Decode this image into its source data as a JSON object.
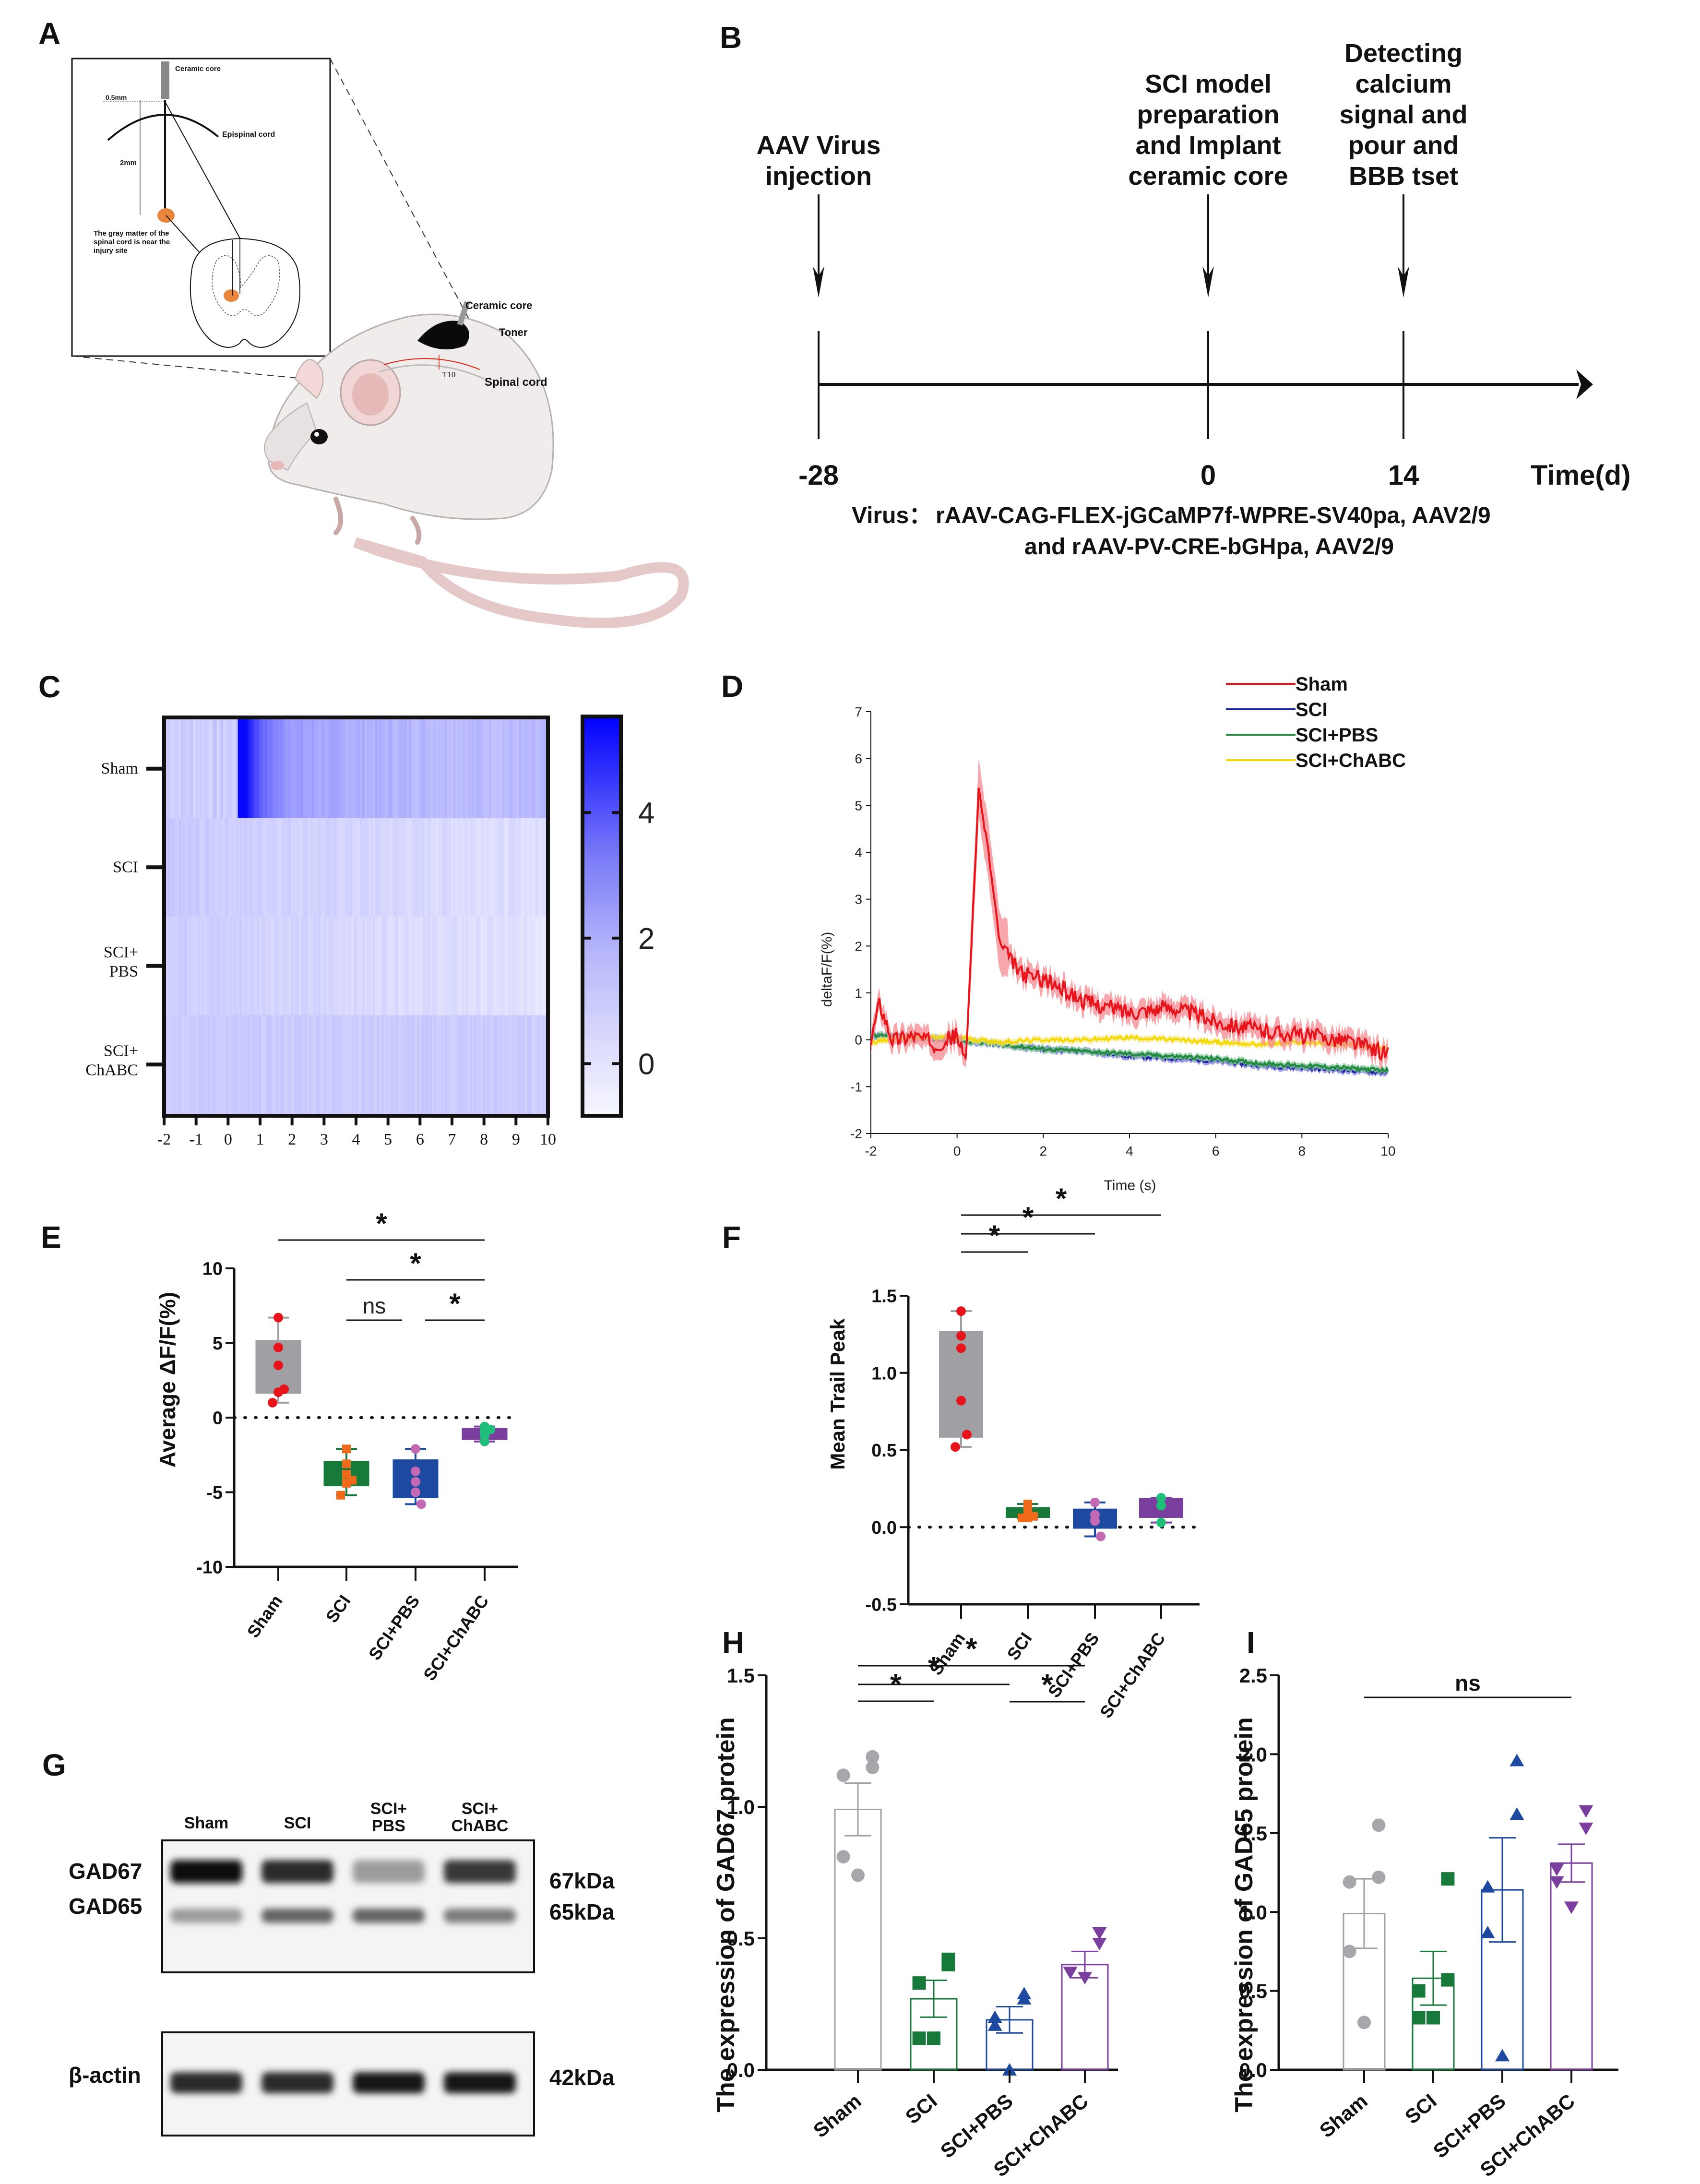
{
  "figure": {
    "panels": [
      "A",
      "B",
      "C",
      "D",
      "E",
      "F",
      "G",
      "H",
      "I"
    ]
  },
  "panel_a": {
    "letter": "A",
    "inset_labels": {
      "ceramic_core": "Ceramic core",
      "half_mm": "0.5mm",
      "epispinal_cord": "Epispinal cord",
      "two_mm": "2mm",
      "gray_matter_note": [
        "The gray matter of the",
        "spinal cord is near the",
        "injury site"
      ]
    },
    "mouse_labels": {
      "ceramic_core": "Ceramic core",
      "toner": "Toner",
      "t10": "T10",
      "spinal_cord": "Spinal cord"
    }
  },
  "panel_b": {
    "letter": "B",
    "events": [
      {
        "day": "-28",
        "label": [
          "AAV Virus",
          "injection"
        ]
      },
      {
        "day": "0",
        "label": [
          "SCI model",
          "preparation",
          "and Implant",
          "ceramic core"
        ]
      },
      {
        "day": "14",
        "label": [
          "Detecting",
          "calcium",
          "signal and",
          "pour and",
          "BBB tset"
        ]
      }
    ],
    "axis_label": "Time(d)",
    "virus_prefix": "Virus：",
    "virus_lines": [
      "rAAV-CAG-FLEX-jGCaMP7f-WPRE-SV40pa, AAV2/9",
      "and rAAV-PV-CRE-bGHpa, AAV2/9"
    ]
  },
  "colors": {
    "sham_red": "#e8141c",
    "sci_navy": "#1a1f9c",
    "pbs_green": "#1e8a3c",
    "chabc_yellow": "#f5d800",
    "box_gray": "#a0a0a4",
    "box_green": "#177a3a",
    "box_blue": "#1d4aa0",
    "box_purple": "#7a3f9e",
    "dot_orange": "#f06a1a",
    "dot_pink": "#c46ab4",
    "dot_teal": "#1fbf7a",
    "heat_max": "#0000ff"
  },
  "chart_data": [
    {
      "id": "C",
      "type": "heatmap",
      "letter": "C",
      "title": "",
      "rows": [
        "Sham",
        "SCI",
        "SCI+\nPBS",
        "SCI+\nChABC"
      ],
      "row_labels": [
        [
          "Sham"
        ],
        [
          "SCI"
        ],
        [
          "SCI+",
          "PBS"
        ],
        [
          "SCI+",
          "ChABC"
        ]
      ],
      "x_ticks": [
        "-2",
        "-1",
        "0",
        "1",
        "2",
        "3",
        "4",
        "5",
        "6",
        "7",
        "8",
        "9",
        "10"
      ],
      "xlim": [
        -2,
        10
      ],
      "colorbar": {
        "ticks": [
          "0",
          "2",
          "4"
        ],
        "range": [
          -0.8,
          5.5
        ]
      },
      "row_profiles": {
        "Sham": {
          "baseline": 0.3,
          "peak": 5.3,
          "peak_at": 0.4,
          "decay_to": 0.6
        },
        "SCI": {
          "baseline": 0.35,
          "peak": 0.35,
          "peak_at": 0,
          "decay_to": -0.2
        },
        "SCI+PBS": {
          "baseline": 0.3,
          "peak": 0.3,
          "peak_at": 0,
          "decay_to": -0.3
        },
        "SCI+ChABC": {
          "baseline": 0.35,
          "peak": 0.35,
          "peak_at": 0,
          "decay_to": 0.3
        }
      }
    },
    {
      "id": "D",
      "type": "line",
      "letter": "D",
      "xlabel": "Time (s)",
      "ylabel": "deltaF/F(%)",
      "xlim": [
        -2,
        10
      ],
      "ylim": [
        -2,
        7
      ],
      "x_ticks": [
        "-2",
        "0",
        "2",
        "4",
        "6",
        "8",
        "10"
      ],
      "y_ticks": [
        "-2",
        "-1",
        "0",
        "1",
        "2",
        "3",
        "4",
        "5",
        "6",
        "7"
      ],
      "legend": [
        "Sham",
        "SCI",
        "SCI+PBS",
        "SCI+ChABC"
      ],
      "legend_position": "top-right",
      "series": [
        {
          "name": "Sham",
          "x": [
            -2,
            -1.8,
            -1.5,
            -1,
            -0.5,
            0,
            0.2,
            0.5,
            0.7,
            1.0,
            1.5,
            2,
            3,
            4,
            5,
            6,
            7,
            8,
            9,
            10
          ],
          "y": [
            0,
            0.8,
            0,
            0.1,
            -0.1,
            0.1,
            -0.5,
            5.3,
            4.2,
            2.0,
            1.4,
            1.3,
            0.8,
            0.6,
            0.7,
            0.4,
            0.2,
            0.1,
            0.0,
            -0.3
          ]
        },
        {
          "name": "SCI",
          "x": [
            -2,
            -1,
            0,
            1,
            2,
            3,
            4,
            5,
            6,
            7,
            8,
            9,
            10
          ],
          "y": [
            0.1,
            0.05,
            0,
            -0.1,
            -0.2,
            -0.25,
            -0.35,
            -0.4,
            -0.45,
            -0.55,
            -0.6,
            -0.65,
            -0.7
          ]
        },
        {
          "name": "SCI+PBS",
          "x": [
            -2,
            -1,
            0,
            1,
            2,
            3,
            4,
            5,
            6,
            7,
            8,
            9,
            10
          ],
          "y": [
            0.1,
            0.05,
            0,
            -0.1,
            -0.2,
            -0.25,
            -0.3,
            -0.35,
            -0.4,
            -0.5,
            -0.55,
            -0.6,
            -0.65
          ]
        },
        {
          "name": "SCI+ChABC",
          "x": [
            -2,
            -1,
            0,
            1,
            2,
            3,
            4,
            5,
            6,
            7,
            8,
            9,
            10
          ],
          "y": [
            -0.05,
            0.05,
            0.05,
            -0.05,
            0,
            0,
            0.05,
            0,
            -0.05,
            -0.1,
            -0.05,
            -0.1,
            -0.2
          ]
        }
      ]
    },
    {
      "id": "E",
      "type": "box",
      "letter": "E",
      "ylabel": "Average  ΔF/F(%)",
      "ylim": [
        -10,
        10
      ],
      "y_ticks": [
        "-10",
        "-5",
        "0",
        "5",
        "10"
      ],
      "categories": [
        "Sham",
        "SCI",
        "SCI+PBS",
        "SCI+ChABC"
      ],
      "boxes": [
        {
          "name": "Sham",
          "min": 1.0,
          "q1": 1.6,
          "q3": 5.2,
          "max": 6.7,
          "points": [
            6.7,
            4.7,
            3.5,
            1.7,
            1.9,
            1.0
          ]
        },
        {
          "name": "SCI",
          "min": -5.2,
          "q1": -4.6,
          "q3": -2.9,
          "max": -2.1,
          "points": [
            -2.1,
            -3.1,
            -3.8,
            -4.4,
            -4.2,
            -5.2
          ]
        },
        {
          "name": "SCI+PBS",
          "min": -5.8,
          "q1": -5.4,
          "q3": -2.8,
          "max": -2.1,
          "points": [
            -2.1,
            -3.6,
            -4.3,
            -5.0,
            -5.8
          ]
        },
        {
          "name": "SCI+ChABC",
          "min": -1.6,
          "q1": -1.5,
          "q3": -0.7,
          "max": -0.6,
          "points": [
            -0.6,
            -0.9,
            -1.2,
            -1.6,
            -0.8
          ]
        }
      ],
      "significance": [
        {
          "from": 0,
          "to": 3,
          "label": "*"
        },
        {
          "from": 1,
          "to": 3,
          "label": "*"
        },
        {
          "from": 1,
          "to": 2,
          "label": "ns"
        },
        {
          "from": 2,
          "to": 3,
          "label": "*"
        }
      ]
    },
    {
      "id": "F",
      "type": "box",
      "letter": "F",
      "ylabel": "Mean Trail Peak",
      "ylim": [
        -0.5,
        1.5
      ],
      "y_ticks": [
        "-0.5",
        "0.0",
        "0.5",
        "1.0",
        "1.5"
      ],
      "categories": [
        "Sham",
        "SCI",
        "SCI+PBS",
        "SCI+ChABC"
      ],
      "boxes": [
        {
          "name": "Sham",
          "min": 0.52,
          "q1": 0.58,
          "q3": 1.27,
          "max": 1.4,
          "points": [
            1.4,
            1.24,
            1.16,
            0.82,
            0.6,
            0.52
          ]
        },
        {
          "name": "SCI",
          "min": 0.06,
          "q1": 0.06,
          "q3": 0.13,
          "max": 0.15,
          "points": [
            0.12,
            0.15,
            0.08,
            0.06,
            0.07,
            0.06
          ]
        },
        {
          "name": "SCI+PBS",
          "min": -0.06,
          "q1": -0.01,
          "q3": 0.12,
          "max": 0.16,
          "points": [
            0.16,
            0.08,
            0.04,
            0.04,
            -0.06
          ]
        },
        {
          "name": "SCI+ChABC",
          "min": 0.03,
          "q1": 0.06,
          "q3": 0.19,
          "max": 0.19,
          "points": [
            0.19,
            0.19,
            0.14,
            0.03
          ]
        }
      ],
      "significance": [
        {
          "from": 0,
          "to": 3,
          "label": "*"
        },
        {
          "from": 0,
          "to": 2,
          "label": "*"
        },
        {
          "from": 0,
          "to": 1,
          "label": "*"
        }
      ]
    },
    {
      "id": "H",
      "type": "bar",
      "letter": "H",
      "ylabel": "The expression of GAD67 protein",
      "ylim": [
        0,
        1.5
      ],
      "y_ticks": [
        "0.0",
        "0.5",
        "1.0",
        "1.5"
      ],
      "categories": [
        "Sham",
        "SCI",
        "SCI+PBS",
        "SCI+ChABC"
      ],
      "values": [
        0.99,
        0.27,
        0.19,
        0.4
      ],
      "sem": [
        0.1,
        0.07,
        0.05,
        0.05
      ],
      "points": [
        [
          1.15,
          1.19,
          1.12,
          0.81,
          0.74
        ],
        [
          0.42,
          0.4,
          0.33,
          0.12,
          0.12
        ],
        [
          0.29,
          0.27,
          0.2,
          0.17,
          0.0
        ],
        [
          0.52,
          0.48,
          0.37,
          0.37,
          0.35
        ]
      ],
      "markers": [
        "circle",
        "square",
        "triangle-up",
        "triangle-down"
      ],
      "significance": [
        {
          "from": 0,
          "to": 3,
          "label": "*"
        },
        {
          "from": 0,
          "to": 2,
          "label": "*"
        },
        {
          "from": 0,
          "to": 1,
          "label": "*"
        },
        {
          "from": 2,
          "to": 3,
          "label": "*"
        }
      ]
    },
    {
      "id": "I",
      "type": "bar",
      "letter": "I",
      "ylabel": "The expression of GAD65 protein",
      "ylim": [
        0,
        2.5
      ],
      "y_ticks": [
        "0.0",
        "0.5",
        "1.0",
        "1.5",
        "2.0",
        "2.5"
      ],
      "categories": [
        "Sham",
        "SCI",
        "SCI+PBS",
        "SCI+ChABC"
      ],
      "values": [
        0.99,
        0.58,
        1.14,
        1.31
      ],
      "sem": [
        0.22,
        0.17,
        0.33,
        0.12
      ],
      "points": [
        [
          1.55,
          1.22,
          1.19,
          0.75,
          0.3
        ],
        [
          1.21,
          0.57,
          0.5,
          0.33,
          0.33
        ],
        [
          1.96,
          1.62,
          1.16,
          0.87,
          0.09
        ],
        [
          1.64,
          1.53,
          1.27,
          1.19,
          1.03
        ]
      ],
      "markers": [
        "circle",
        "square",
        "triangle-up",
        "triangle-down"
      ],
      "significance": [
        {
          "from": 0,
          "to": 3,
          "label": "ns"
        }
      ]
    }
  ],
  "panel_g": {
    "letter": "G",
    "lanes": [
      [
        "Sham"
      ],
      [
        "SCI"
      ],
      [
        "SCI+",
        "PBS"
      ],
      [
        "SCI+",
        "ChABC"
      ]
    ],
    "left_labels": [
      "GAD67",
      "GAD65",
      "β-actin"
    ],
    "right_labels": [
      "67kDa",
      "65kDa",
      "42kDa"
    ],
    "band_intensity": {
      "GAD67": [
        1.0,
        0.85,
        0.35,
        0.8
      ],
      "GAD65": [
        0.35,
        0.6,
        0.6,
        0.5
      ],
      "beta_actin": [
        0.85,
        0.85,
        0.95,
        0.95
      ]
    }
  }
}
